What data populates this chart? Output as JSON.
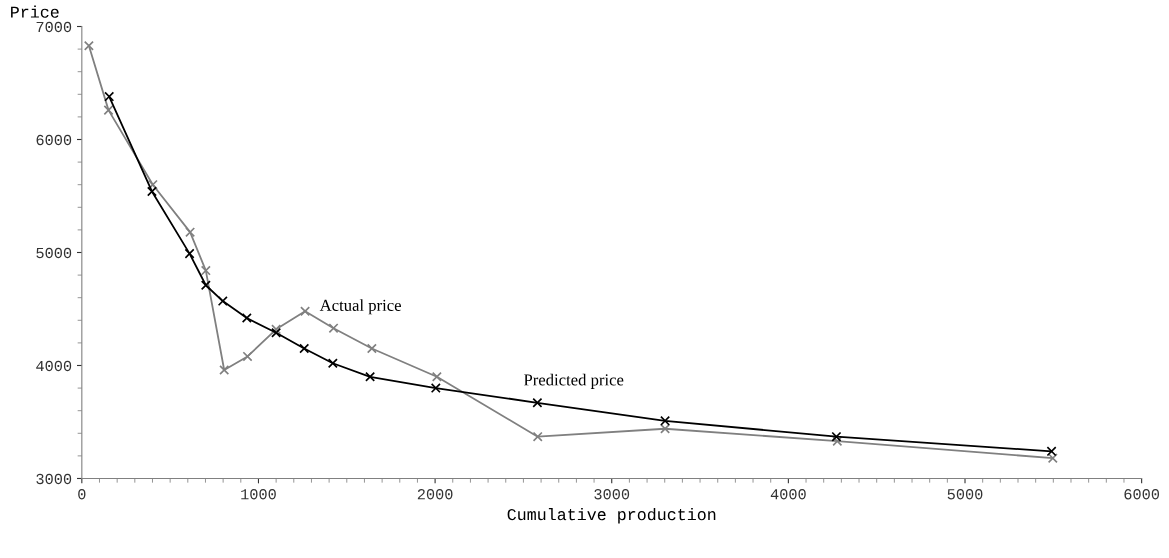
{
  "chart_data": {
    "type": "line",
    "xlabel": "Cumulative production",
    "ylabel": "Price",
    "xlim": [
      0,
      6000
    ],
    "xticks": [
      0,
      1000,
      2000,
      3000,
      4000,
      5000,
      6000
    ],
    "ylim": [
      3000,
      7000
    ],
    "yticks": [
      3000,
      4000,
      5000,
      6000,
      7000
    ],
    "grid": false,
    "marker": "cross",
    "line_style": "solid",
    "series": [
      {
        "name": "Actual price",
        "color": "#808080",
        "x": [
          40,
          151,
          402,
          613,
          702,
          806,
          938,
          1100,
          1264,
          1425,
          1642,
          2010,
          2581,
          3302,
          4277,
          5497
        ],
        "values": [
          6830,
          6260,
          5600,
          5180,
          4840,
          3960,
          4080,
          4320,
          4480,
          4330,
          4150,
          3900,
          3370,
          3440,
          3330,
          3180
        ]
      },
      {
        "name": "Predicted price",
        "color": "#000000",
        "x": [
          155,
          397,
          610,
          702,
          798,
          934,
          1100,
          1259,
          1421,
          1632,
          2004,
          2579,
          3302,
          4272,
          5490
        ],
        "values": [
          6380,
          5540,
          4990,
          4710,
          4570,
          4420,
          4290,
          4150,
          4020,
          3900,
          3800,
          3670,
          3510,
          3370,
          3240
        ]
      }
    ]
  }
}
